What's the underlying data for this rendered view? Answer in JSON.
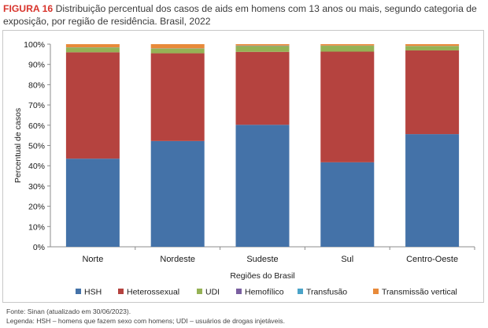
{
  "caption": {
    "figure_label": "FIGURA 16",
    "text": "Distribuição percentual dos casos de aids em homens com 13 anos ou mais, segundo categoria de exposição, por região de residência. Brasil, 2022"
  },
  "notes": {
    "source": "Fonte: Sinan (atualizado em 30/06/2023).",
    "legend_note": "Legenda: HSH – homens que fazem sexo com homens; UDI – usuários de drogas injetáveis."
  },
  "chart_data": {
    "type": "bar",
    "stacked": true,
    "categories": [
      "Norte",
      "Nordeste",
      "Sudeste",
      "Sul",
      "Centro-Oeste"
    ],
    "series": [
      {
        "name": "HSH",
        "color": "#4472a8",
        "values": [
          43.5,
          52.2,
          60.2,
          41.7,
          55.6
        ]
      },
      {
        "name": "Heterossexual",
        "color": "#b5433f",
        "values": [
          52.5,
          43.3,
          36.0,
          54.6,
          41.3
        ]
      },
      {
        "name": "UDI",
        "color": "#95b255",
        "values": [
          2.3,
          2.3,
          2.9,
          2.9,
          2.1
        ]
      },
      {
        "name": "Hemofílico",
        "color": "#7a5fa0",
        "values": [
          0.0,
          0.0,
          0.1,
          0.0,
          0.0
        ]
      },
      {
        "name": "Transfusão",
        "color": "#4aa3c8",
        "values": [
          0.1,
          0.1,
          0.1,
          0.1,
          0.1
        ]
      },
      {
        "name": "Transmissão vertical",
        "color": "#e88a3a",
        "values": [
          1.6,
          2.1,
          0.7,
          0.7,
          0.9
        ]
      }
    ],
    "y_ticks": [
      "0%",
      "10%",
      "20%",
      "30%",
      "40%",
      "50%",
      "60%",
      "70%",
      "80%",
      "90%",
      "100%"
    ],
    "ylim": [
      0,
      100
    ],
    "ylabel": "Percentual de casos",
    "xlabel": "Regiões do Brasil",
    "legend_position": "bottom",
    "grid": false
  }
}
